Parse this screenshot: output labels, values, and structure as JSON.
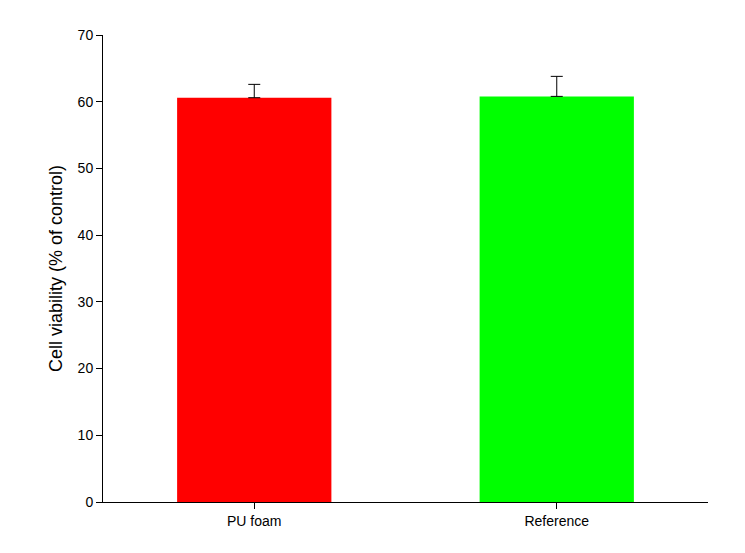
{
  "chart_data": {
    "type": "bar",
    "y_label": "Cell viability (% of control)",
    "categories": [
      "PU foam",
      "Reference"
    ],
    "values": [
      60.6,
      60.8
    ],
    "errors": [
      2.0,
      3.0
    ],
    "colors": [
      "#ff0000",
      "#00ff00"
    ],
    "ylim": [
      0,
      70
    ],
    "yticks": [
      0,
      10,
      20,
      30,
      40,
      50,
      60,
      70
    ],
    "grid": false
  }
}
